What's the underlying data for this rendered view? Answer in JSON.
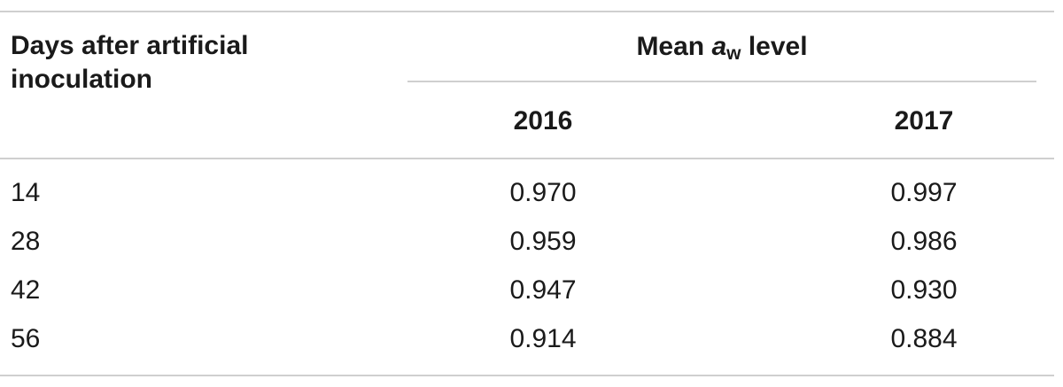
{
  "header": {
    "row_label": "Days after artificial inoculation",
    "group_prefix": "Mean ",
    "group_var": "a",
    "group_sub": "w",
    "group_suffix": " level",
    "columns": [
      "2016",
      "2017"
    ]
  },
  "rows": [
    {
      "label": "14",
      "values": [
        "0.970",
        "0.997"
      ]
    },
    {
      "label": "28",
      "values": [
        "0.959",
        "0.986"
      ]
    },
    {
      "label": "42",
      "values": [
        "0.947",
        "0.930"
      ]
    },
    {
      "label": "56",
      "values": [
        "0.914",
        "0.884"
      ]
    }
  ]
}
